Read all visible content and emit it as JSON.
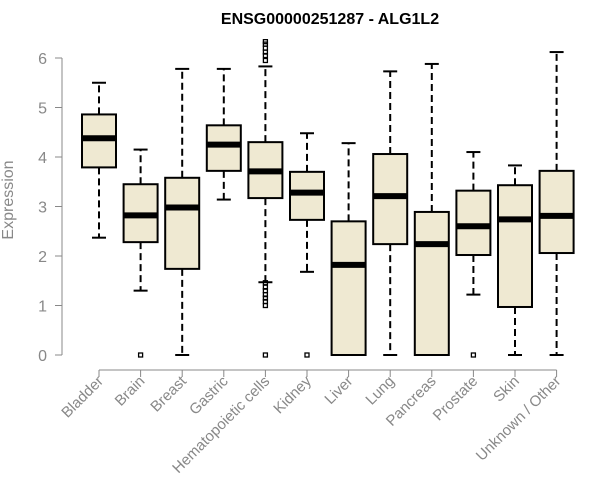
{
  "chart_data": {
    "type": "boxplot",
    "title": "ENSG00000251287 - ALG1L2",
    "xlabel": "",
    "ylabel": "Expression",
    "ylim": [
      0,
      6.2
    ],
    "yticks": [
      0,
      1,
      2,
      3,
      4,
      5,
      6
    ],
    "grid": false,
    "box_fill": "#efe9d2",
    "box_stroke": "#000000",
    "categories": [
      "Bladder",
      "Brain",
      "Breast",
      "Gastric",
      "Hematopoietic cells",
      "Kidney",
      "Liver",
      "Lung",
      "Pancreas",
      "Prostate",
      "Skin",
      "Unknown / Other"
    ],
    "boxes": [
      {
        "name": "Bladder",
        "whisker_low": 2.37,
        "q1": 3.79,
        "median": 4.38,
        "q3": 4.86,
        "whisker_high": 5.5,
        "outliers": []
      },
      {
        "name": "Brain",
        "whisker_low": 1.3,
        "q1": 2.28,
        "median": 2.82,
        "q3": 3.45,
        "whisker_high": 4.15,
        "outliers": [
          0.0
        ]
      },
      {
        "name": "Breast",
        "whisker_low": 0.0,
        "q1": 1.74,
        "median": 2.98,
        "q3": 3.58,
        "whisker_high": 5.78,
        "outliers": []
      },
      {
        "name": "Gastric",
        "whisker_low": 3.14,
        "q1": 3.72,
        "median": 4.25,
        "q3": 4.64,
        "whisker_high": 5.78,
        "outliers": []
      },
      {
        "name": "Hematopoietic cells",
        "whisker_low": 1.47,
        "q1": 3.17,
        "median": 3.71,
        "q3": 4.3,
        "whisker_high": 5.83,
        "outliers": [
          0.0,
          1.0,
          1.08,
          1.15,
          1.22,
          1.3,
          1.37,
          1.46,
          5.95,
          6.05,
          6.12,
          6.2,
          6.28,
          6.33
        ]
      },
      {
        "name": "Kidney",
        "whisker_low": 1.68,
        "q1": 2.73,
        "median": 3.28,
        "q3": 3.7,
        "whisker_high": 4.48,
        "outliers": [
          0.0
        ]
      },
      {
        "name": "Liver",
        "whisker_low": 0.0,
        "q1": 0.0,
        "median": 1.82,
        "q3": 2.7,
        "whisker_high": 4.28,
        "outliers": []
      },
      {
        "name": "Lung",
        "whisker_low": 0.0,
        "q1": 2.24,
        "median": 3.21,
        "q3": 4.06,
        "whisker_high": 5.73,
        "outliers": []
      },
      {
        "name": "Pancreas",
        "whisker_low": 0.0,
        "q1": 0.0,
        "median": 2.24,
        "q3": 2.89,
        "whisker_high": 5.88,
        "outliers": []
      },
      {
        "name": "Prostate",
        "whisker_low": 1.22,
        "q1": 2.02,
        "median": 2.6,
        "q3": 3.32,
        "whisker_high": 4.1,
        "outliers": [
          0.0
        ]
      },
      {
        "name": "Skin",
        "whisker_low": 0.0,
        "q1": 0.97,
        "median": 2.74,
        "q3": 3.43,
        "whisker_high": 3.83,
        "outliers": []
      },
      {
        "name": "Unknown / Other",
        "whisker_low": 0.0,
        "q1": 2.06,
        "median": 2.81,
        "q3": 3.72,
        "whisker_high": 6.12,
        "outliers": []
      }
    ]
  }
}
